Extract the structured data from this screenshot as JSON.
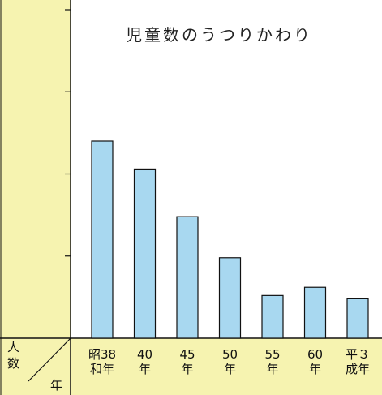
{
  "chart_data": {
    "type": "bar",
    "title": "児童数のうつりかわり",
    "ylabel": "人数",
    "xlabel": "年",
    "categories": [
      [
        "昭38",
        "和年"
      ],
      [
        "40",
        "年"
      ],
      [
        "45",
        "年"
      ],
      [
        "50",
        "年"
      ],
      [
        "55",
        "年"
      ],
      [
        "60",
        "年"
      ],
      [
        "平３",
        "成年"
      ]
    ],
    "values": [
      120,
      103,
      74,
      49,
      26,
      31,
      24
    ],
    "ylim": [
      0,
      200
    ],
    "y_ticks": [
      50,
      100,
      150,
      200
    ],
    "grid": false,
    "colors": {
      "bar_fill": "#a8d8f0",
      "bar_stroke": "#111111",
      "panel": "#f6f3b0"
    }
  }
}
